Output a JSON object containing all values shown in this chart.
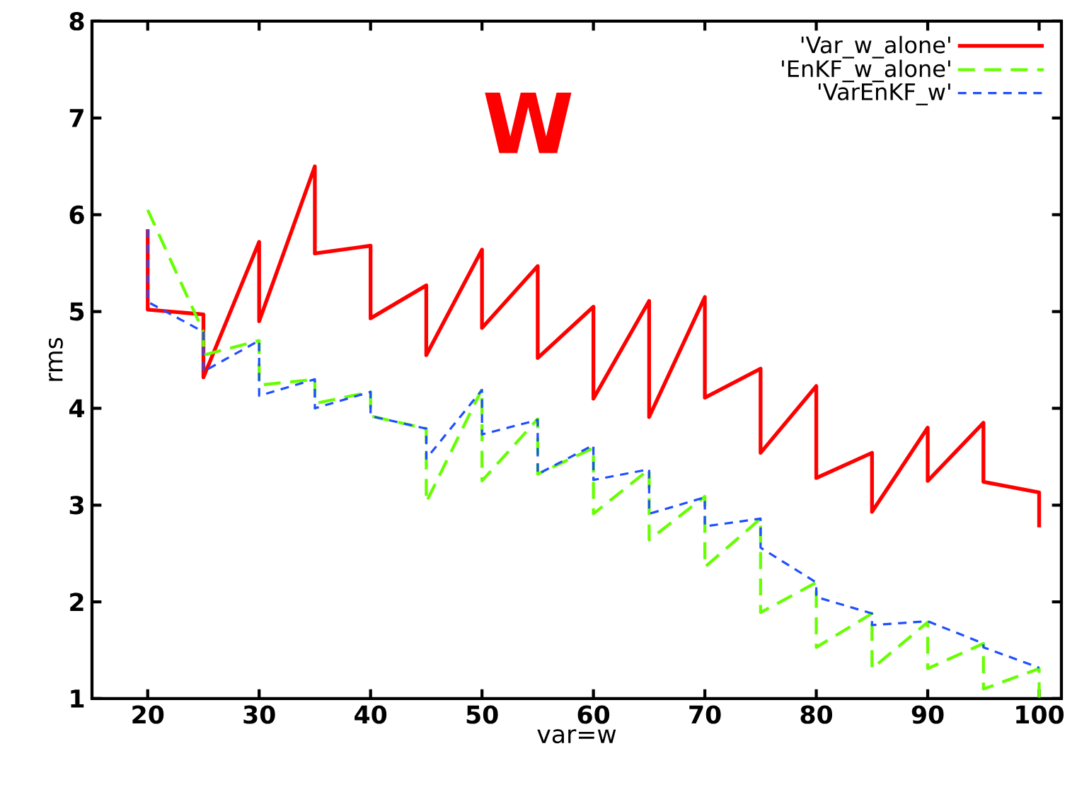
{
  "chart_data": {
    "type": "line",
    "title": "W",
    "xlabel": "var=w",
    "ylabel": "rms",
    "xlim": [
      15,
      102
    ],
    "ylim": [
      1,
      8
    ],
    "xticks": [
      20,
      30,
      40,
      50,
      60,
      70,
      80,
      90,
      100
    ],
    "yticks": [
      1,
      2,
      3,
      4,
      5,
      6,
      7,
      8
    ],
    "grid": false,
    "legend": "top right",
    "marker": "none",
    "series": [
      {
        "name": "'Var_w_alone'",
        "color": "#ff0000",
        "line_style": "solid",
        "x": [
          20,
          20,
          25,
          25,
          30,
          30,
          35,
          35,
          40,
          40,
          45,
          45,
          50,
          50,
          55,
          55,
          60,
          60,
          65,
          65,
          70,
          70,
          75,
          75,
          80,
          80,
          85,
          85,
          90,
          90,
          95,
          95,
          100,
          100
        ],
        "values": [
          5.85,
          5.02,
          4.97,
          4.32,
          5.72,
          4.9,
          6.5,
          5.6,
          5.68,
          4.93,
          5.27,
          4.55,
          5.64,
          4.83,
          5.47,
          4.52,
          5.05,
          4.1,
          5.11,
          3.91,
          5.15,
          4.11,
          4.41,
          3.54,
          4.23,
          3.28,
          3.54,
          2.93,
          3.8,
          3.25,
          3.85,
          3.24,
          3.13,
          2.77
        ]
      },
      {
        "name": "'EnKF_w_alone'",
        "color": "#66ff00",
        "line_style": "dashed",
        "x": [
          20,
          25,
          25,
          30,
          30,
          35,
          35,
          40,
          40,
          45,
          45,
          50,
          50,
          55,
          55,
          60,
          60,
          65,
          65,
          70,
          70,
          75,
          75,
          80,
          80,
          85,
          85,
          90,
          90,
          95,
          95,
          100,
          100
        ],
        "values": [
          6.05,
          4.79,
          4.55,
          4.7,
          4.24,
          4.3,
          4.05,
          4.17,
          3.92,
          3.79,
          3.03,
          4.2,
          3.25,
          3.89,
          3.32,
          3.59,
          2.91,
          3.37,
          2.64,
          3.09,
          2.36,
          2.86,
          1.89,
          2.2,
          1.53,
          1.88,
          1.31,
          1.79,
          1.31,
          1.57,
          1.1,
          1.31,
          1.01
        ]
      },
      {
        "name": "'VarEnKF_w'",
        "color": "#1f4fff",
        "line_style": "dotted",
        "x": [
          20,
          20,
          25,
          25,
          30,
          30,
          35,
          35,
          40,
          40,
          45,
          45,
          50,
          50,
          55,
          55,
          60,
          60,
          65,
          65,
          70,
          70,
          75,
          75,
          80,
          80,
          85,
          85,
          90,
          95,
          95,
          100
        ],
        "values": [
          5.85,
          5.1,
          4.79,
          4.38,
          4.7,
          4.13,
          4.3,
          4.0,
          4.17,
          3.92,
          3.79,
          3.48,
          4.19,
          3.73,
          3.88,
          3.32,
          3.62,
          3.26,
          3.37,
          2.91,
          3.08,
          2.78,
          2.86,
          2.56,
          2.2,
          2.05,
          1.88,
          1.76,
          1.8,
          1.57,
          1.53,
          1.32
        ]
      }
    ]
  }
}
